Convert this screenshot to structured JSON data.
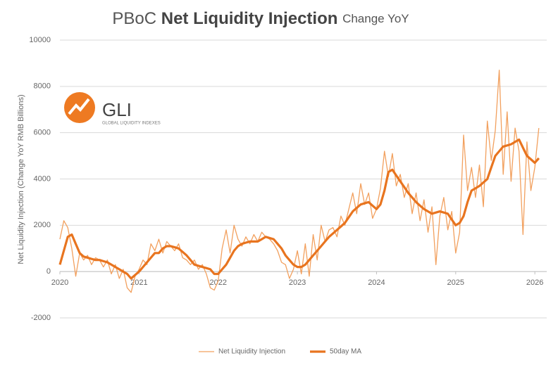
{
  "chart_data": {
    "type": "line",
    "title": [
      "PBoC",
      "Net Liquidity Injection",
      "Change YoY"
    ],
    "y_label": "Net Liquidity Injection (Change YoY RMB Billions)",
    "logo": {
      "name": "GLI",
      "tagline": "GLOBAL LIQUIDITY INDEXES"
    },
    "x": [
      2020,
      2020.05,
      2020.1,
      2020.15,
      2020.2,
      2020.25,
      2020.3,
      2020.35,
      2020.4,
      2020.45,
      2020.5,
      2020.55,
      2020.6,
      2020.65,
      2020.7,
      2020.75,
      2020.8,
      2020.85,
      2020.9,
      2020.95,
      2021,
      2021.05,
      2021.1,
      2021.15,
      2021.2,
      2021.25,
      2021.3,
      2021.35,
      2021.4,
      2021.45,
      2021.5,
      2021.55,
      2021.6,
      2021.65,
      2021.7,
      2021.75,
      2021.8,
      2021.85,
      2021.9,
      2021.95,
      2022,
      2022.05,
      2022.1,
      2022.15,
      2022.2,
      2022.25,
      2022.3,
      2022.35,
      2022.4,
      2022.45,
      2022.5,
      2022.55,
      2022.6,
      2022.65,
      2022.7,
      2022.75,
      2022.8,
      2022.85,
      2022.9,
      2022.95,
      2023,
      2023.05,
      2023.1,
      2023.15,
      2023.2,
      2023.25,
      2023.3,
      2023.35,
      2023.4,
      2023.45,
      2023.5,
      2023.55,
      2023.6,
      2023.65,
      2023.7,
      2023.75,
      2023.8,
      2023.85,
      2023.9,
      2023.95,
      2024,
      2024.05,
      2024.1,
      2024.15,
      2024.2,
      2024.25,
      2024.3,
      2024.35,
      2024.4,
      2024.45,
      2024.5,
      2024.55,
      2024.6,
      2024.65,
      2024.7,
      2024.75,
      2024.8,
      2024.85,
      2024.9,
      2024.95,
      2025,
      2025.05,
      2025.1,
      2025.15,
      2025.2,
      2025.25,
      2025.3,
      2025.35,
      2025.4,
      2025.45,
      2025.5,
      2025.55,
      2025.6,
      2025.65,
      2025.7,
      2025.75,
      2025.8,
      2025.85,
      2025.9,
      2025.95,
      2026,
      2026.05
    ],
    "series": [
      {
        "name": "Net Liquidity Injection",
        "color": "#f2a05e",
        "width": 1.3,
        "values": [
          1400,
          2200,
          1900,
          1000,
          -200,
          800,
          500,
          700,
          300,
          600,
          500,
          200,
          500,
          -100,
          300,
          -300,
          100,
          -700,
          -900,
          -200,
          100,
          500,
          300,
          1200,
          900,
          1400,
          800,
          1300,
          1100,
          900,
          1200,
          600,
          500,
          300,
          500,
          100,
          300,
          -100,
          -700,
          -800,
          -400,
          1000,
          1800,
          800,
          2000,
          1400,
          1100,
          1500,
          1200,
          1600,
          1300,
          1700,
          1500,
          1400,
          1200,
          900,
          400,
          300,
          -300,
          100,
          900,
          -100,
          1200,
          -200,
          1600,
          500,
          2000,
          1300,
          1800,
          1900,
          1500,
          2400,
          2000,
          2700,
          3400,
          2500,
          3800,
          2900,
          3400,
          2300,
          2700,
          3600,
          5200,
          4100,
          5100,
          3700,
          4200,
          3200,
          3800,
          2500,
          3400,
          2200,
          3100,
          1700,
          2800,
          300,
          2400,
          3200,
          1800,
          2600,
          800,
          1700,
          5900,
          3500,
          4500,
          3200,
          4600,
          2800,
          6500,
          4800,
          6100,
          8700,
          4200,
          6900,
          3900,
          6200,
          5200,
          1600,
          5600,
          3500,
          4500,
          6200
        ]
      },
      {
        "name": "50day MA",
        "color": "#e8741f",
        "width": 3.2,
        "values": [
          300,
          900,
          1500,
          1600,
          1200,
          800,
          650,
          600,
          550,
          500,
          500,
          450,
          400,
          300,
          200,
          100,
          0,
          -100,
          -300,
          -150,
          0,
          200,
          400,
          600,
          800,
          800,
          1000,
          1100,
          1100,
          1050,
          1000,
          850,
          700,
          500,
          300,
          250,
          200,
          150,
          100,
          -100,
          -100,
          100,
          300,
          600,
          900,
          1100,
          1200,
          1250,
          1300,
          1300,
          1300,
          1400,
          1500,
          1450,
          1400,
          1200,
          1000,
          700,
          500,
          300,
          200,
          200,
          300,
          500,
          700,
          900,
          1100,
          1300,
          1500,
          1650,
          1800,
          1950,
          2100,
          2350,
          2600,
          2750,
          2900,
          2950,
          3000,
          2850,
          2700,
          2900,
          3500,
          4300,
          4400,
          4150,
          3900,
          3650,
          3400,
          3200,
          3000,
          2850,
          2700,
          2600,
          2500,
          2550,
          2600,
          2550,
          2500,
          2250,
          2000,
          2100,
          2400,
          3000,
          3500,
          3600,
          3700,
          3850,
          4000,
          4500,
          5000,
          5200,
          5400,
          5450,
          5500,
          5600,
          5700,
          5350,
          5000,
          4850,
          4700,
          4900
        ]
      }
    ],
    "xlim": [
      2020,
      2026.15
    ],
    "xticks": [
      2020,
      2021,
      2022,
      2023,
      2024,
      2025,
      2026
    ],
    "ylim": [
      -2000,
      10000
    ],
    "yticks": [
      -2000,
      0,
      2000,
      4000,
      6000,
      8000,
      10000
    ],
    "grid": true,
    "legend": "bottom"
  }
}
